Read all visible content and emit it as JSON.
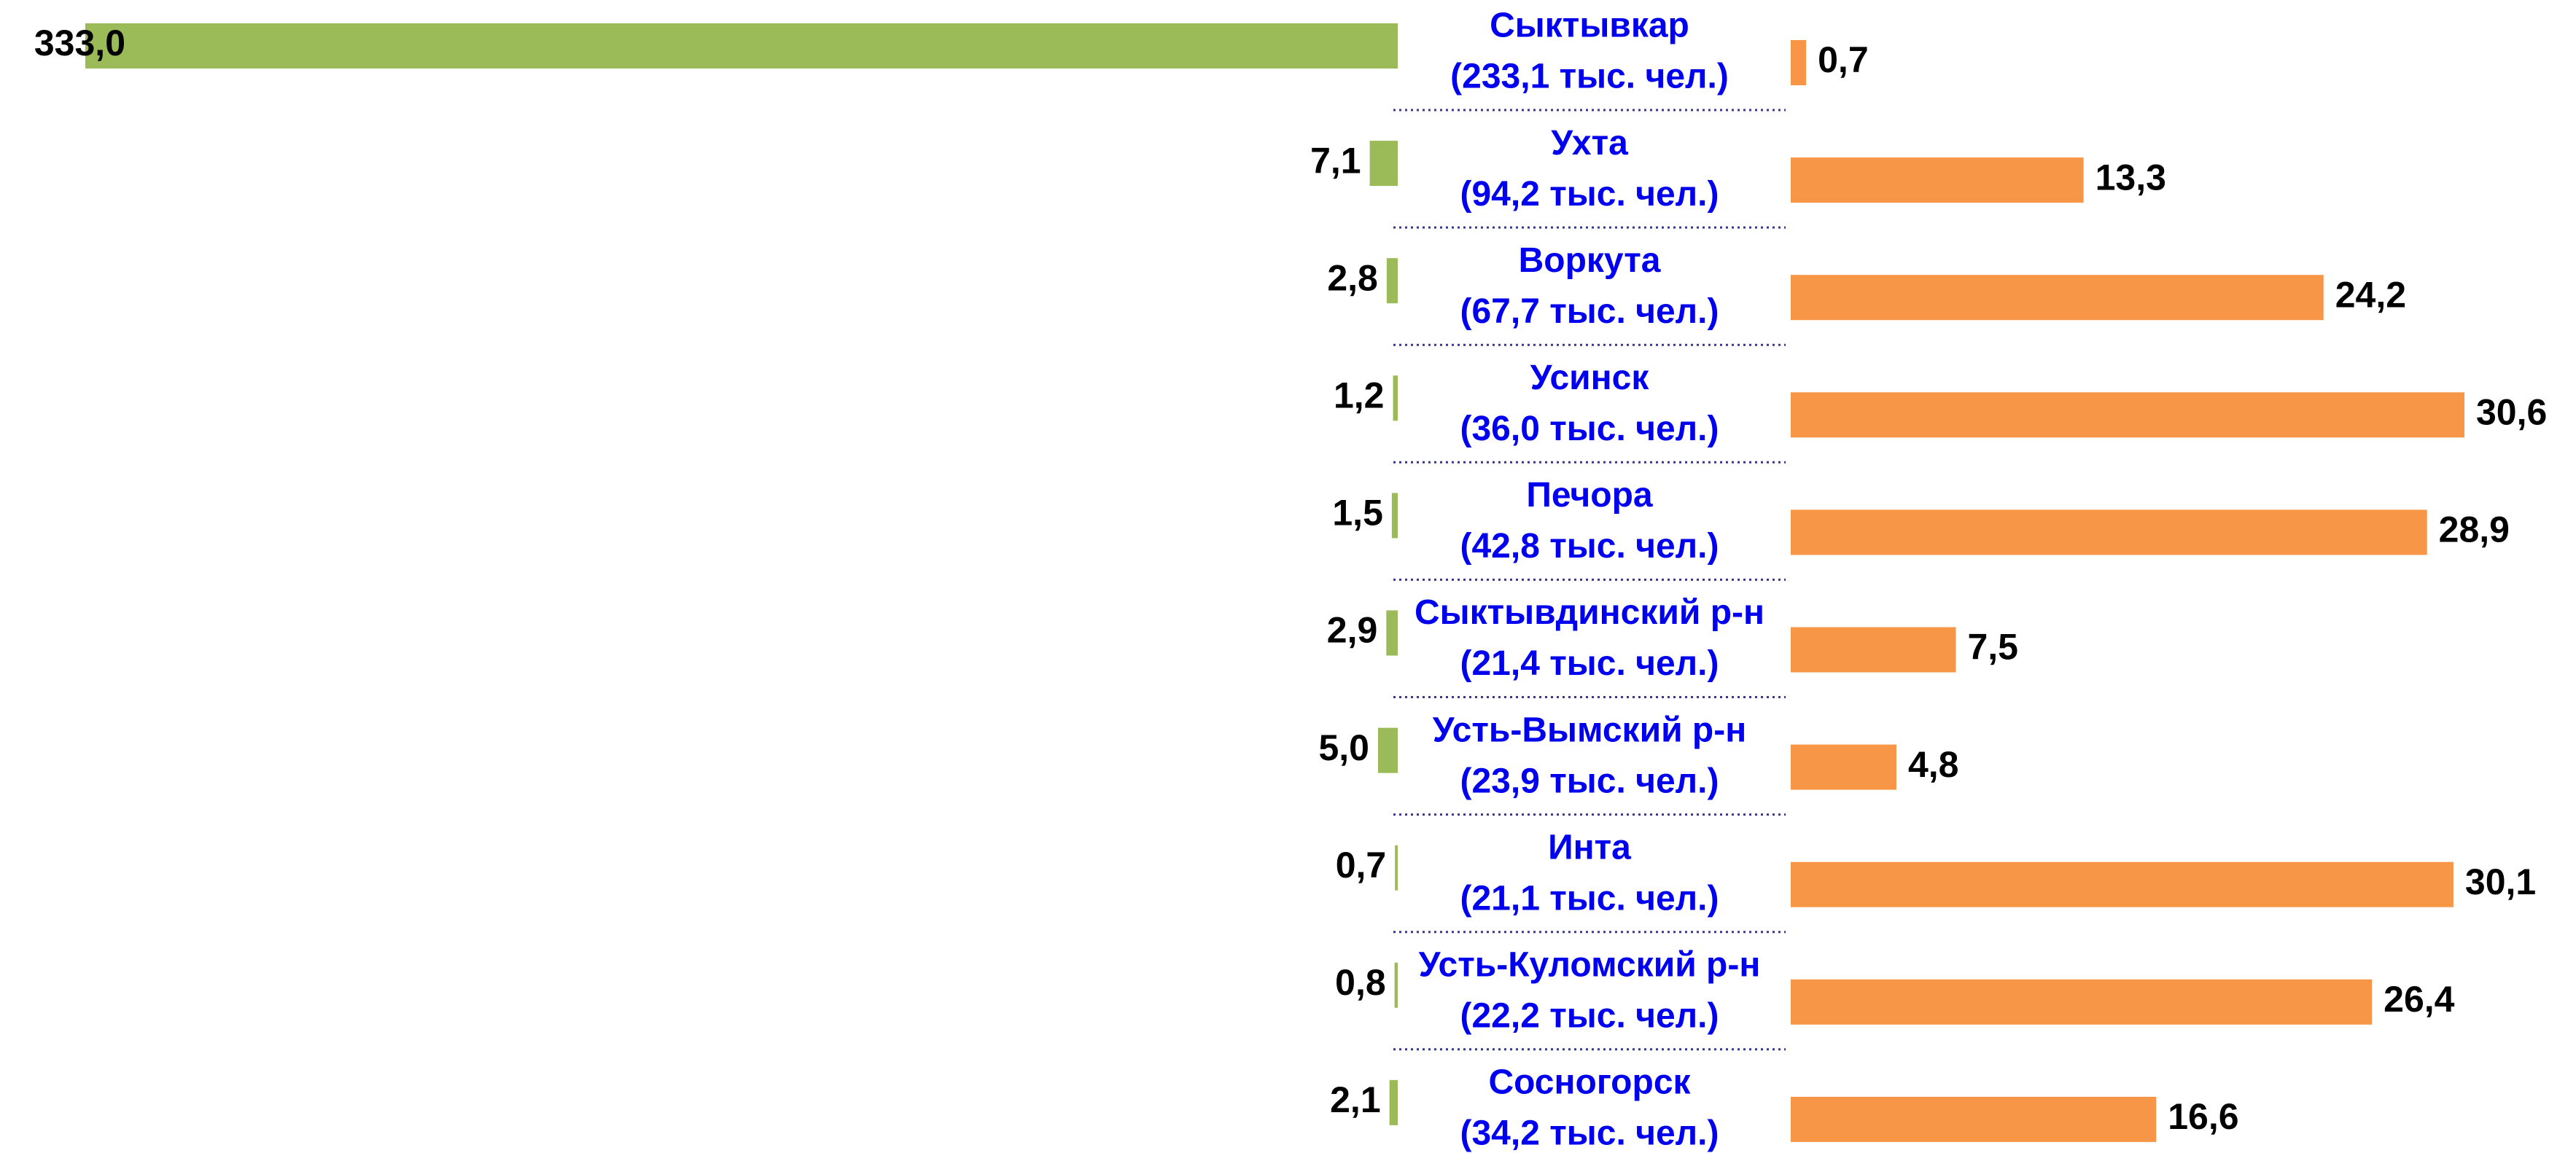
{
  "chart_data": {
    "type": "butterfly-bar",
    "categories": [
      "Сыктывкар",
      "Ухта",
      "Воркута",
      "Усинск",
      "Печора",
      "Сыктывдинский р-н",
      "Усть-Вымский р-н",
      "Инта",
      "Усть-Куломский р-н",
      "Сосногорск"
    ],
    "category_sublabels": [
      "(233,1 тыс. чел.)",
      "(94,2 тыс. чел.)",
      "(67,7 тыс. чел.)",
      "(36,0 тыс. чел.)",
      "(42,8 тыс. чел.)",
      "(21,4 тыс. чел.)",
      "(23,9 тыс. чел.)",
      "(21,1 тыс. чел.)",
      "(22,2 тыс. чел.)",
      "(34,2 тыс. чел.)"
    ],
    "series": [
      {
        "color": "#9bbb59",
        "values": [
          333.0,
          7.1,
          2.8,
          1.2,
          1.5,
          2.9,
          5.0,
          0.7,
          0.8,
          2.1
        ],
        "value_labels": [
          "333,0",
          "7,1",
          "2,8",
          "1,2",
          "1,5",
          "2,9",
          "5,0",
          "0,7",
          "0,8",
          "2,1"
        ]
      },
      {
        "color": "#f79646",
        "values": [
          0.7,
          13.3,
          24.2,
          30.6,
          28.9,
          7.5,
          4.8,
          30.1,
          26.4,
          16.6
        ],
        "value_labels": [
          "0,7",
          "13,3",
          "24,2",
          "30,6",
          "28,9",
          "7,5",
          "4,8",
          "30,1",
          "26,4",
          "16,6"
        ]
      }
    ]
  }
}
